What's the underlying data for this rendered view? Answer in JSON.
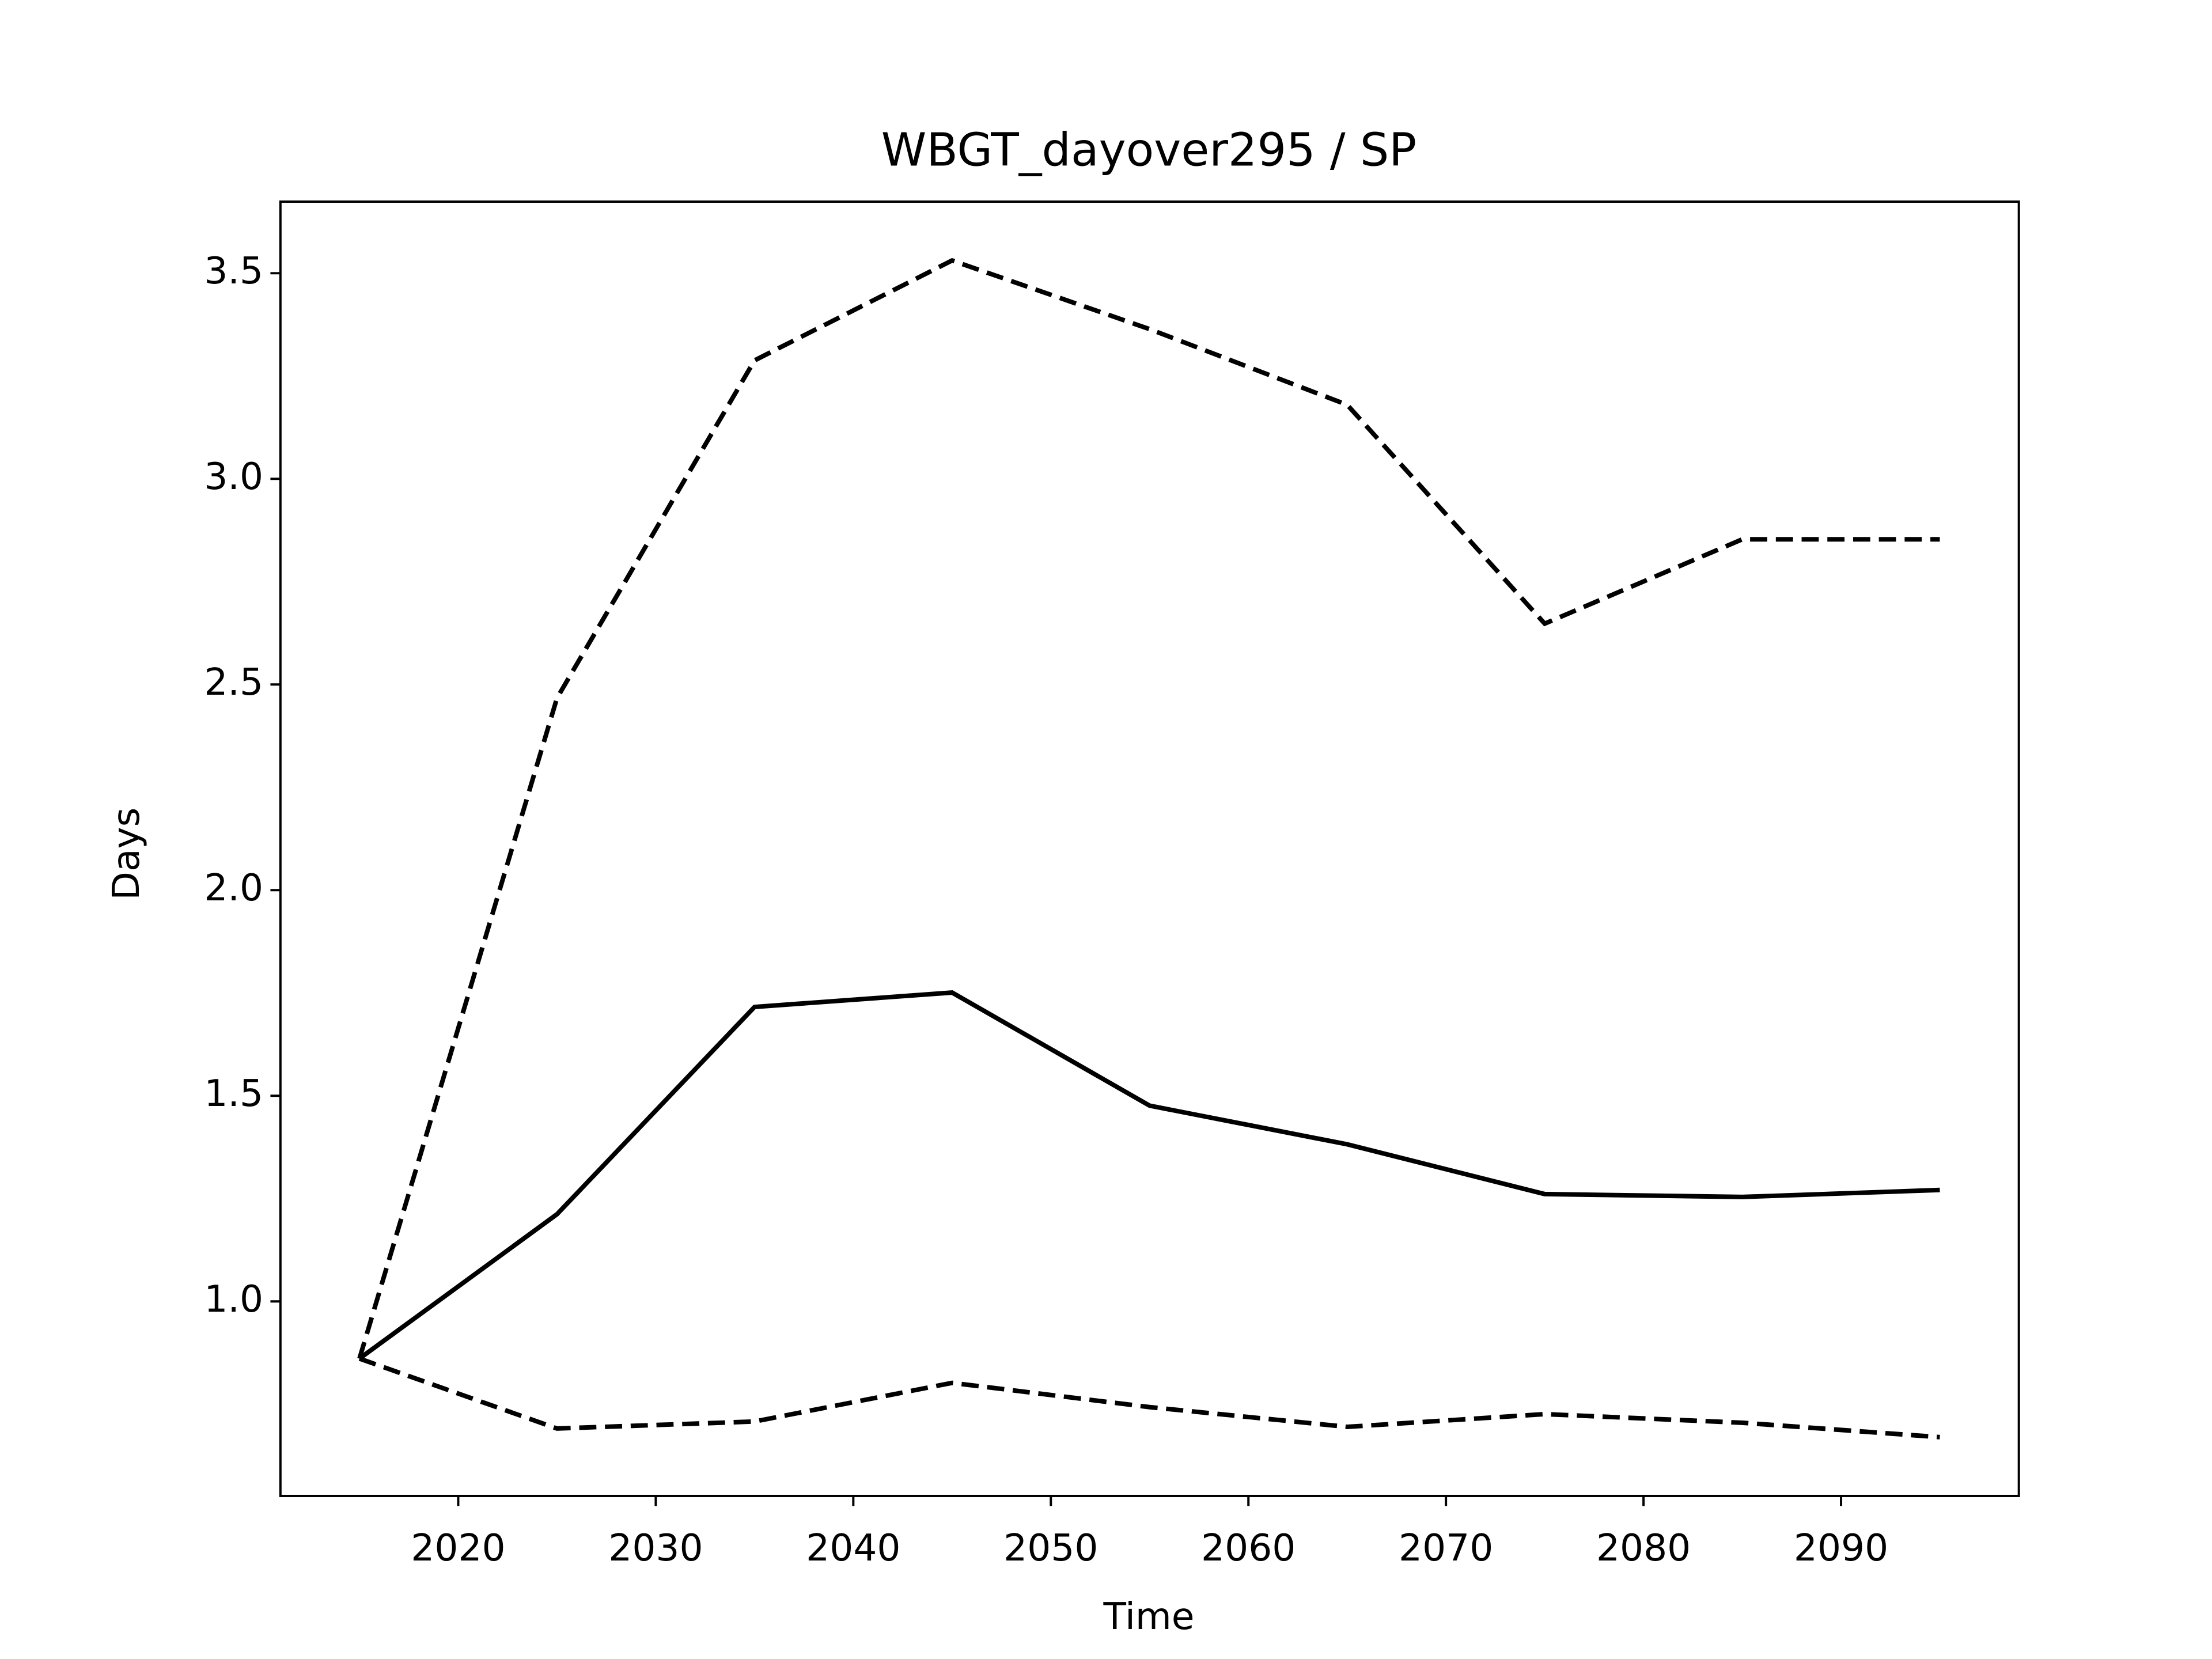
{
  "chart_data": {
    "type": "line",
    "title": "WBGT_dayover295 / SP",
    "x_label": "Time",
    "y_label": "Days",
    "x": [
      2015,
      2025,
      2035,
      2045,
      2055,
      2065,
      2075,
      2085,
      2095
    ],
    "series": [
      {
        "color": "#000000",
        "linestyle": "solid",
        "values": [
          0.861,
          1.212,
          1.716,
          1.751,
          1.476,
          1.382,
          1.261,
          1.254,
          1.271
        ]
      },
      {
        "color": "#000000",
        "linestyle": "dashed",
        "values": [
          0.861,
          2.467,
          3.288,
          3.531,
          3.364,
          3.18,
          2.648,
          2.853,
          2.853
        ]
      },
      {
        "color": "#000000",
        "linestyle": "dashed",
        "values": [
          0.861,
          0.691,
          0.708,
          0.802,
          0.743,
          0.695,
          0.726,
          0.705,
          0.67
        ]
      }
    ],
    "xlim": [
      2011,
      2099
    ],
    "xticks": [
      2020,
      2030,
      2040,
      2050,
      2060,
      2070,
      2080,
      2090
    ],
    "ylim": [
      0.527,
      3.674
    ],
    "yticks": [
      {
        "value": 1,
        "label": "1.0"
      },
      1.5,
      {
        "value": 2,
        "label": "2.0"
      },
      2.5,
      {
        "value": 3,
        "label": "3.0"
      },
      3.5
    ],
    "grid": false
  }
}
